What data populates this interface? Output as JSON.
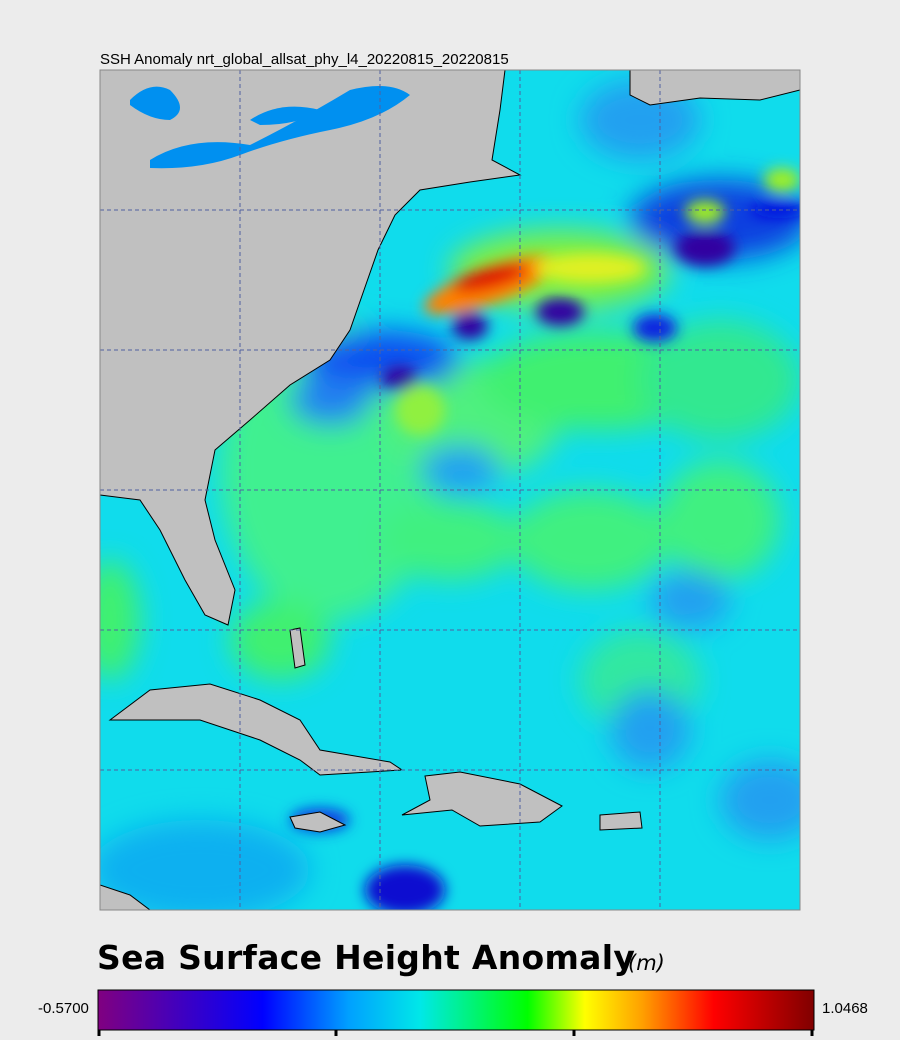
{
  "map": {
    "title": "SSH Anomaly nrt_global_allsat_phy_l4_20220815_20220815"
  },
  "colorbar": {
    "title": "Sea Surface Height Anomaly",
    "unit": "(m)",
    "min_label": "-0.5700",
    "max_label": "1.0468"
  }
}
